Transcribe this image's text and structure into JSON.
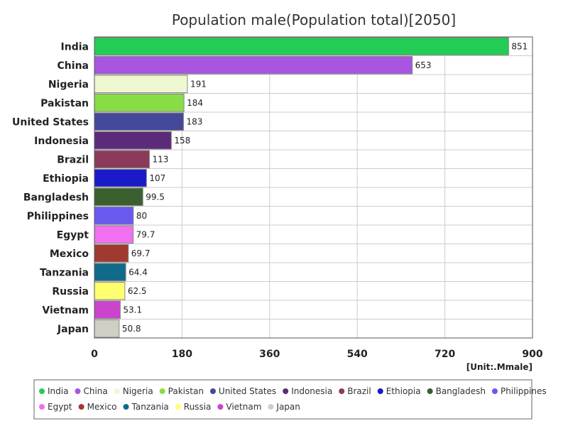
{
  "chart_data": {
    "type": "bar",
    "orientation": "horizontal",
    "title": "Population male(Population total)[2050]",
    "unit": "[Unit:.Mmale]",
    "xlim": [
      0,
      900
    ],
    "xticks": [
      0,
      180,
      360,
      540,
      720,
      900
    ],
    "grid": true,
    "legend_position": "bottom",
    "categories": [
      "India",
      "China",
      "Nigeria",
      "Pakistan",
      "United States",
      "Indonesia",
      "Brazil",
      "Ethiopia",
      "Bangladesh",
      "Philippines",
      "Egypt",
      "Mexico",
      "Tanzania",
      "Russia",
      "Vietnam",
      "Japan"
    ],
    "values": [
      851,
      653,
      191,
      184,
      183,
      158,
      113,
      107,
      99.5,
      80,
      79.7,
      69.7,
      64.4,
      62.5,
      53.1,
      50.8
    ],
    "value_labels": [
      "851",
      "653",
      "191",
      "184",
      "183",
      "158",
      "113",
      "107",
      "99.5",
      "80",
      "79.7",
      "69.7",
      "64.4",
      "62.5",
      "53.1",
      "50.8"
    ],
    "colors": [
      "#22cc55",
      "#a855e0",
      "#eef8d0",
      "#88dd44",
      "#444a99",
      "#5c2a7a",
      "#8c3a5a",
      "#1a1ac8",
      "#3a6030",
      "#6a5af0",
      "#f070f0",
      "#a03a30",
      "#106a8a",
      "#ffff70",
      "#cc44cc",
      "#cfcfc4"
    ]
  }
}
